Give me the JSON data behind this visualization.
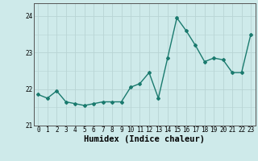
{
  "x": [
    0,
    1,
    2,
    3,
    4,
    5,
    6,
    7,
    8,
    9,
    10,
    11,
    12,
    13,
    14,
    15,
    16,
    17,
    18,
    19,
    20,
    21,
    22,
    23
  ],
  "y": [
    21.85,
    21.75,
    21.95,
    21.65,
    21.6,
    21.55,
    21.6,
    21.65,
    21.65,
    21.65,
    22.05,
    22.15,
    22.45,
    21.75,
    22.85,
    23.95,
    23.6,
    23.2,
    22.75,
    22.85,
    22.8,
    22.45,
    22.45,
    23.5
  ],
  "line_color": "#1a7a6e",
  "marker": "D",
  "markersize": 2.0,
  "linewidth": 1.0,
  "background_color": "#ceeaea",
  "grid_color": "#b8d4d4",
  "xlabel": "Humidex (Indice chaleur)",
  "xlabel_fontsize": 7.5,
  "ylim": [
    21.0,
    24.35
  ],
  "yticks": [
    21,
    22,
    23,
    24
  ],
  "xticks": [
    0,
    1,
    2,
    3,
    4,
    5,
    6,
    7,
    8,
    9,
    10,
    11,
    12,
    13,
    14,
    15,
    16,
    17,
    18,
    19,
    20,
    21,
    22,
    23
  ],
  "tick_fontsize": 5.5,
  "spine_color": "#555555"
}
